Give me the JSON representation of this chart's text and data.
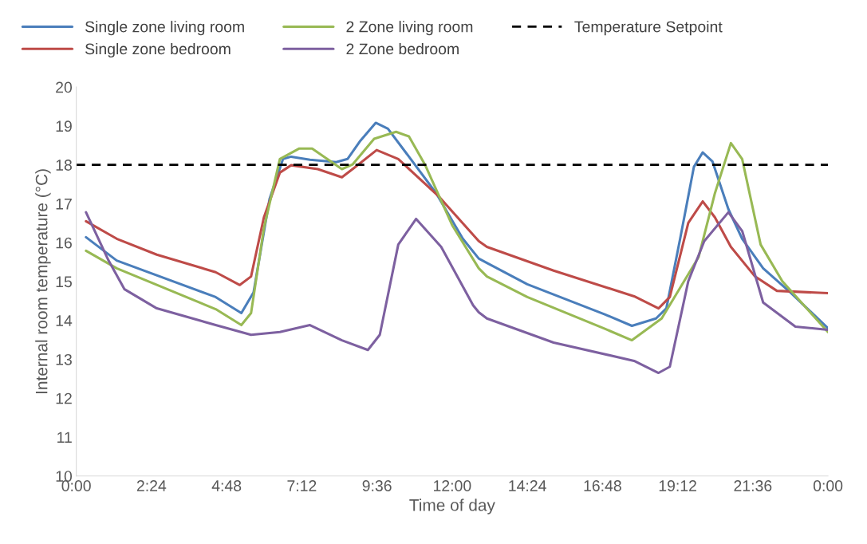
{
  "chart_data": {
    "type": "line",
    "xlabel": "Time of day",
    "ylabel": "Internal room temperature (°C)",
    "xlim": [
      0,
      24
    ],
    "ylim": [
      10,
      20
    ],
    "xticks": [
      {
        "value": 0,
        "label": "0:00"
      },
      {
        "value": 2.4,
        "label": "2:24"
      },
      {
        "value": 4.8,
        "label": "4:48"
      },
      {
        "value": 7.2,
        "label": "7:12"
      },
      {
        "value": 9.6,
        "label": "9:36"
      },
      {
        "value": 12,
        "label": "12:00"
      },
      {
        "value": 14.4,
        "label": "14:24"
      },
      {
        "value": 16.8,
        "label": "16:48"
      },
      {
        "value": 19.2,
        "label": "19:12"
      },
      {
        "value": 21.6,
        "label": "21:36"
      },
      {
        "value": 24,
        "label": "0:00"
      }
    ],
    "yticks": [
      10,
      11,
      12,
      13,
      14,
      15,
      16,
      17,
      18,
      19,
      20
    ],
    "grid": false,
    "legend": "top",
    "marker": "none",
    "line_style": "solid",
    "series": [
      {
        "name": "Single zone living room",
        "color": "#4a7ebb",
        "x": [
          0.31,
          1.29,
          4.45,
          5.27,
          5.66,
          6.17,
          6.6,
          6.86,
          7.46,
          8.3,
          8.66,
          9.07,
          9.56,
          9.95,
          10.62,
          11.49,
          12.34,
          12.85,
          13.11,
          14.4,
          16.89,
          17.74,
          18.51,
          18.84,
          19.28,
          19.72,
          20.0,
          20.31,
          20.82,
          21.26,
          21.93,
          22.8,
          24.0
        ],
        "values": [
          16.14,
          15.54,
          14.6,
          14.19,
          14.72,
          17.12,
          18.15,
          18.21,
          18.13,
          18.07,
          18.15,
          18.62,
          19.08,
          18.93,
          18.21,
          17.27,
          16.1,
          15.59,
          15.48,
          14.93,
          14.15,
          13.86,
          14.05,
          14.31,
          16.1,
          17.95,
          18.32,
          18.09,
          16.86,
          16.1,
          15.34,
          14.72,
          13.8
        ]
      },
      {
        "name": "Single zone bedroom",
        "color": "#be4b48",
        "x": [
          0.31,
          1.29,
          2.57,
          4.45,
          5.22,
          5.58,
          5.99,
          6.5,
          6.86,
          7.71,
          8.48,
          8.92,
          9.59,
          10.28,
          11.57,
          12.85,
          13.11,
          15.24,
          17.81,
          18.59,
          18.95,
          19.54,
          20.0,
          20.39,
          20.9,
          21.67,
          22.37,
          24.0
        ],
        "values": [
          16.55,
          16.1,
          15.69,
          15.24,
          14.91,
          15.13,
          16.65,
          17.8,
          17.99,
          17.89,
          17.68,
          17.95,
          18.38,
          18.15,
          17.19,
          16.04,
          15.89,
          15.28,
          14.62,
          14.31,
          14.6,
          16.51,
          17.06,
          16.65,
          15.89,
          15.13,
          14.76,
          14.7
        ]
      },
      {
        "name": "2 Zone living room",
        "color": "#98b954",
        "x": [
          0.31,
          1.29,
          4.45,
          5.27,
          5.58,
          5.99,
          6.5,
          7.12,
          7.53,
          8.48,
          8.82,
          9.51,
          10.21,
          10.62,
          11.13,
          12.0,
          12.85,
          13.11,
          14.4,
          16.89,
          17.74,
          18.69,
          19.87,
          20.39,
          20.9,
          21.26,
          21.85,
          22.54,
          24.0
        ],
        "values": [
          15.79,
          15.34,
          14.29,
          13.88,
          14.19,
          16.37,
          18.15,
          18.42,
          18.42,
          17.89,
          18.01,
          18.67,
          18.85,
          18.73,
          18.01,
          16.45,
          15.34,
          15.13,
          14.6,
          13.78,
          13.49,
          14.05,
          15.63,
          17.27,
          18.56,
          18.15,
          15.95,
          15.01,
          13.7
        ]
      },
      {
        "name": "2 Zone bedroom",
        "color": "#7d60a0",
        "x": [
          0.31,
          1.03,
          1.54,
          2.57,
          4.45,
          5.58,
          6.5,
          7.46,
          8.48,
          9.31,
          9.69,
          10.28,
          10.85,
          11.65,
          12.67,
          12.85,
          13.11,
          15.24,
          17.81,
          18.59,
          18.95,
          19.54,
          20.05,
          20.82,
          21.26,
          21.93,
          22.96,
          24.0
        ],
        "values": [
          16.78,
          15.54,
          14.8,
          14.31,
          13.88,
          13.63,
          13.7,
          13.88,
          13.49,
          13.24,
          13.63,
          15.95,
          16.61,
          15.89,
          14.39,
          14.21,
          14.05,
          13.43,
          12.96,
          12.65,
          12.81,
          15.01,
          16.04,
          16.78,
          16.3,
          14.46,
          13.84,
          13.76
        ]
      }
    ],
    "ref_lines": [
      {
        "axis": "y",
        "value": 18,
        "label": "Temperature Setpoint",
        "color": "#000000",
        "line_style": "dashed"
      }
    ]
  }
}
